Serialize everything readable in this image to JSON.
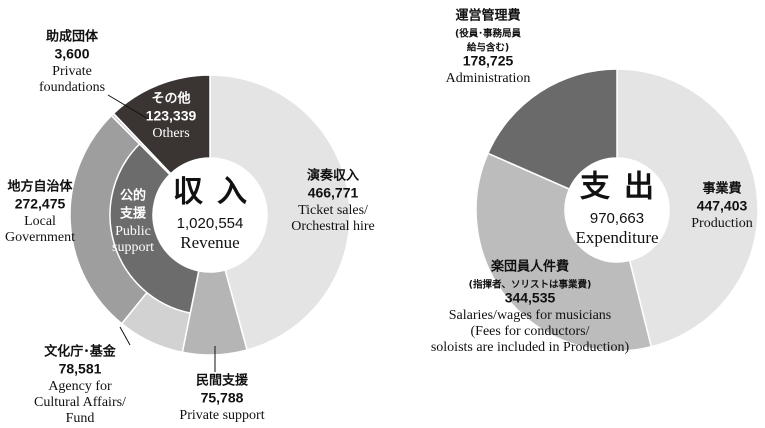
{
  "chart_data": [
    {
      "type": "pie",
      "donut": true,
      "center_title": "収入",
      "total": {
        "value": 1020554,
        "label": "1,020,554"
      },
      "center_label_en": "Revenue",
      "categories": [
        [
          "演奏収入"
        ],
        [
          "民間支援"
        ],
        [
          "文化庁･基金"
        ],
        [
          "地方自治体"
        ],
        [
          "助成団体"
        ],
        [
          "その他"
        ]
      ],
      "labels_en": [
        [
          "Ticket sales/",
          "Orchestral hire"
        ],
        [
          "Private support"
        ],
        [
          "Agency for",
          "Cultural Affairs/",
          "Fund"
        ],
        [
          "Local",
          "Government"
        ],
        [
          "Private",
          "foundations"
        ],
        [
          "Others"
        ]
      ],
      "values": [
        466771,
        75788,
        78581,
        272475,
        3600,
        123339
      ],
      "value_labels": [
        "466,771",
        "75,788",
        "78,581",
        "272,475",
        "3,600",
        "123,339"
      ],
      "colors": [
        "#e4e4e4",
        "#b5b5b5",
        "#d2d2d2",
        "#9e9e9e",
        "#cfcfcf",
        "#3a3432"
      ],
      "inner_ring": {
        "name": [
          "公的",
          "支援"
        ],
        "name_en": [
          "Public",
          "support"
        ],
        "value": 351056,
        "color": "#6c6c6c"
      }
    },
    {
      "type": "pie",
      "donut": true,
      "center_title": "支出",
      "total": {
        "value": 970663,
        "label": "970,663"
      },
      "center_label_en": "Expenditure",
      "categories": [
        [
          "事業費"
        ],
        [
          "楽団員人件費",
          "(指揮者、ソリストは事業費)"
        ],
        [
          "運営管理費",
          "(役員･事務局員",
          "給与含む)"
        ]
      ],
      "labels_en": [
        [
          "Production"
        ],
        [
          "Salaries/wages for musicians",
          "(Fees for conductors/",
          "soloists are included in Production)"
        ],
        [
          "Administration"
        ]
      ],
      "values": [
        447403,
        344535,
        178725
      ],
      "value_labels": [
        "447,403",
        "344,535",
        "178,725"
      ],
      "colors": [
        "#e4e4e4",
        "#bcbcbc",
        "#6a6a6a"
      ]
    }
  ]
}
